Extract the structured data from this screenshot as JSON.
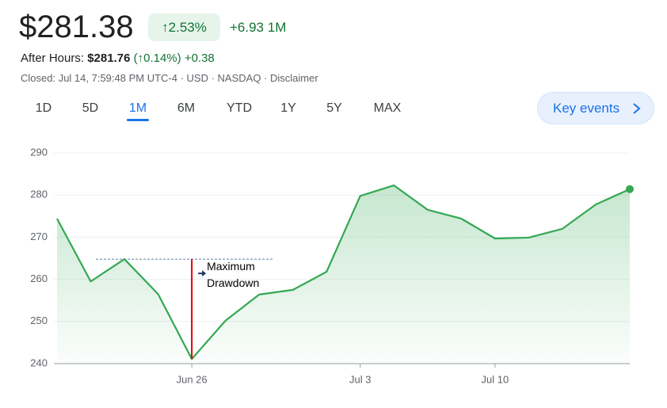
{
  "header": {
    "price": "$281.38",
    "change_pct": "↑2.53%",
    "change_abs": "+6.93 1M",
    "after_hours_label": "After Hours:",
    "after_hours_price": "$281.76",
    "after_hours_pct": "(↑0.14%)",
    "after_hours_abs": "+0.38",
    "closed_line": "Closed: Jul 14, 7:59:48 PM UTC-4 · USD · NASDAQ · Disclaimer"
  },
  "tabs": [
    "1D",
    "5D",
    "1M",
    "6M",
    "YTD",
    "1Y",
    "5Y",
    "MAX"
  ],
  "active_tab": 2,
  "key_events": "Key events",
  "chart_data": {
    "type": "area",
    "categories": [
      null,
      null,
      null,
      null,
      "Jun 26",
      null,
      null,
      null,
      null,
      "Jul 3",
      null,
      null,
      null,
      "Jul 10",
      null,
      null,
      null,
      null
    ],
    "values": [
      274.4,
      259.5,
      264.8,
      256.5,
      241.1,
      250.2,
      256.4,
      257.5,
      261.8,
      279.8,
      282.3,
      276.5,
      274.4,
      269.7,
      269.9,
      272.0,
      277.8,
      281.4
    ],
    "color": "#34a853",
    "ylim": [
      240,
      290
    ],
    "yticks": [
      240,
      250,
      260,
      270,
      280,
      290
    ],
    "grid": true,
    "annotation": {
      "text": [
        "Maximum",
        "Drawdown"
      ],
      "peak_index": 2,
      "trough_index": 4,
      "color": "#e00000"
    }
  }
}
